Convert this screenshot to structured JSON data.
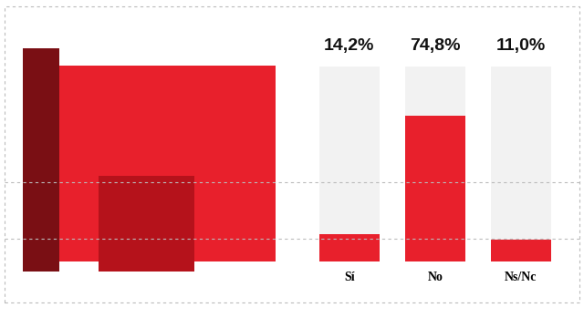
{
  "chart_data": {
    "type": "bar",
    "categories": [
      "Sí",
      "No",
      "Ns/Nc"
    ],
    "values": [
      14.2,
      74.8,
      11.0
    ],
    "value_labels": [
      "14,2%",
      "74,8%",
      "11,0%"
    ],
    "color": "#e8202c",
    "ylim": [
      0,
      100
    ],
    "data_labels": true,
    "tick_labels": "x",
    "grid": false
  }
}
